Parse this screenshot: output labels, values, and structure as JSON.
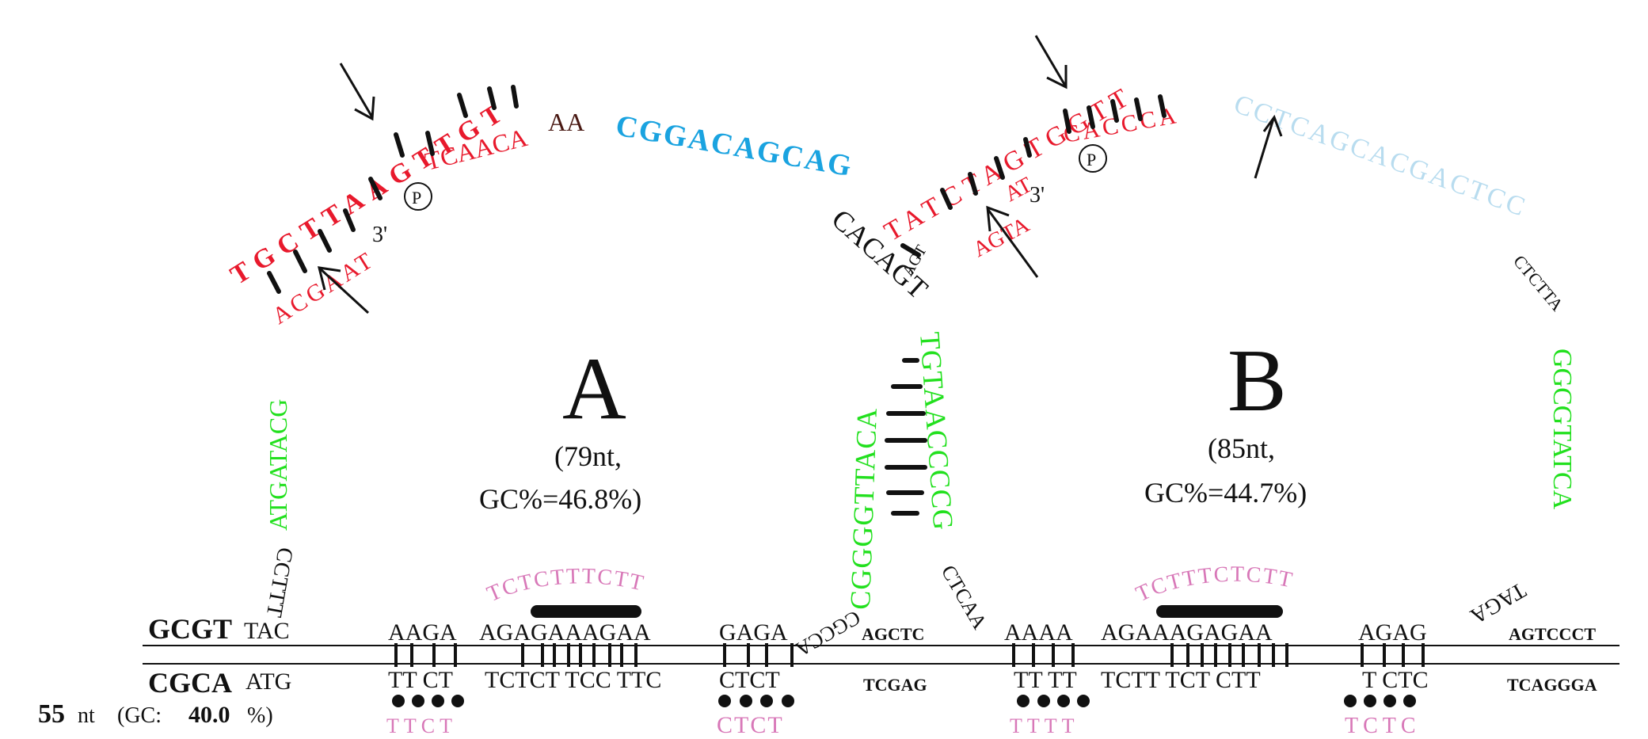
{
  "colors": {
    "red": "#e8192c",
    "blue": "#1aa3e0",
    "lightblue": "#b8dcef",
    "green": "#22e01e",
    "pink": "#d878b8",
    "black": "#111111",
    "brown": "#4a1a14"
  },
  "loopA": {
    "label": "A",
    "stats_line1": "(79nt,",
    "stats_line2": "GC%=46.8%)",
    "green_left": "ATGATACG",
    "black_bottom_left": "CCTTT",
    "red_outer": "TGCTTAAGTTGT",
    "red_inner_a": "ACGAAT",
    "red_inner_b": "TCAACA",
    "three_prime": "3'",
    "phosphate": "P",
    "aa": "AA",
    "blue_top": "CGGACAGCAG",
    "black_top": "CACAGT"
  },
  "loopB": {
    "label": "B",
    "stats_line1": "(85nt,",
    "stats_line2": "GC%=44.7%)",
    "red_outer": "TATCTAGTGGTT",
    "red_inner_a": "AGTA",
    "red_inner_b": "AT",
    "red_inner_c": "CACCCA",
    "three_prime": "3'",
    "phosphate": "P",
    "lightblue_top": "CCTCAGCACGACTCC",
    "black_right": "CTCTTA",
    "green_right": "GGCGTATCA",
    "black_bottom_right": "TAGA"
  },
  "stem": {
    "left_green": "CGGGGTTACA",
    "right_green": "TGTAACCCCG",
    "bottom_left": "CGCCA",
    "bottom_right": "CTCAA",
    "top_small": "AGT"
  },
  "duplex": {
    "left_top_bold": "GCGT",
    "left_top": "TAC",
    "left_bottom_bold": "CGCA",
    "left_bottom": "ATG",
    "top_seqs": [
      "AAGA",
      "AGAGAAAGAA",
      "GAGA",
      "AGCTC",
      "AAAA",
      "AGAAAGAGAA",
      "AGAG",
      "AGTCCCT"
    ],
    "bottom_seqs": [
      "TT CT",
      "TCTCT TCC TTC",
      "CTCT",
      "TCGAG",
      "TT TT",
      "TCTT TCT CTT",
      "T CTC",
      "TCAGGGA"
    ],
    "pink_top": [
      "TCTCTTTCTT",
      "TCTTTCTCTT"
    ],
    "pink_bottom": [
      "TTCT",
      "CTCT",
      "TTTT",
      "TCTC"
    ]
  },
  "footer": {
    "size_number": "55",
    "size_unit": "nt",
    "gc_label": "(GC:",
    "gc_value": "40.0",
    "gc_suffix": "%)"
  }
}
